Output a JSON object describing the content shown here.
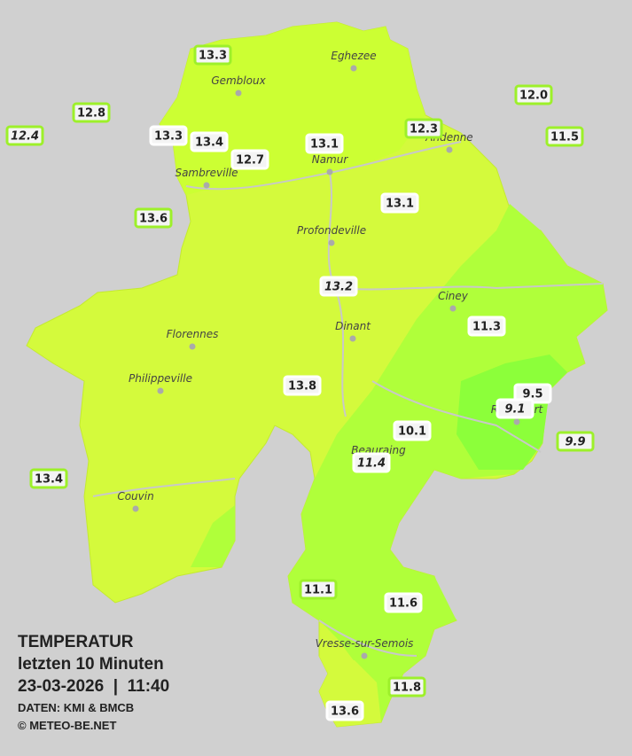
{
  "title": {
    "heading": "TEMPERATUR",
    "period": "letzten 10 Minuten",
    "datetime": "23-03-2026  |  11:40",
    "source": "DATEN: KMI & BMCB",
    "copyright": "© METEO-BE.NET"
  },
  "cities": [
    "Eghezee",
    "Gembloux",
    "Andenne",
    "Namur",
    "Sambreville",
    "Profondeville",
    "Ciney",
    "Dinant",
    "Florennes",
    "Philippeville",
    "Rochefort",
    "Beauraing",
    "Couvin",
    "Vresse-sur-Semois"
  ],
  "stations": [
    {
      "temp": "13.3",
      "outside": true
    },
    {
      "temp": "12.8",
      "outside": true
    },
    {
      "temp": "12.4",
      "outside": true,
      "italic": true
    },
    {
      "temp": "13.3"
    },
    {
      "temp": "13.4"
    },
    {
      "temp": "12.7"
    },
    {
      "temp": "13.1"
    },
    {
      "temp": "12.3",
      "outside": true
    },
    {
      "temp": "12.0",
      "outside": true
    },
    {
      "temp": "11.5",
      "outside": true
    },
    {
      "temp": "13.6",
      "outside": true
    },
    {
      "temp": "13.1"
    },
    {
      "temp": "13.2",
      "italic": true
    },
    {
      "temp": "11.3"
    },
    {
      "temp": "13.8"
    },
    {
      "temp": "9.5"
    },
    {
      "temp": "9.1",
      "italic": true
    },
    {
      "temp": "10.1"
    },
    {
      "temp": "11.4",
      "italic": true
    },
    {
      "temp": "9.9",
      "outside": true,
      "italic": true
    },
    {
      "temp": "13.4",
      "outside": true
    },
    {
      "temp": "11.1",
      "outside": true
    },
    {
      "temp": "11.6"
    },
    {
      "temp": "11.8",
      "outside": true
    },
    {
      "temp": "13.6"
    }
  ]
}
